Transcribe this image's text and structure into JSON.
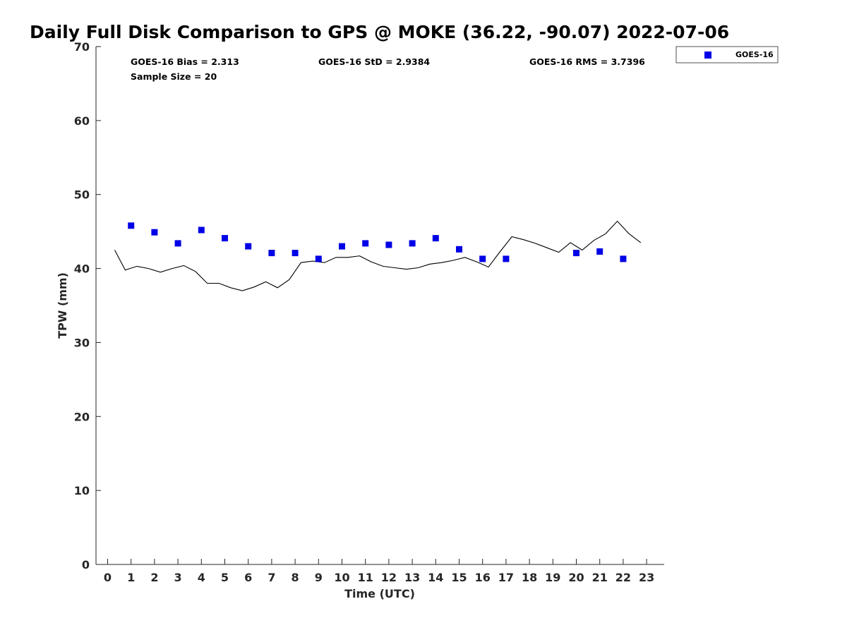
{
  "chart_data": {
    "type": "scatter",
    "title": "Daily Full Disk Comparison to GPS @ MOKE (36.22, -90.07) 2022-07-06",
    "xlabel": "Time (UTC)",
    "ylabel": "TPW (mm)",
    "xlim": [
      -0.5,
      23.8
    ],
    "ylim": [
      0,
      70
    ],
    "x_ticks": [
      "0",
      "1",
      "2",
      "3",
      "4",
      "5",
      "6",
      "7",
      "8",
      "9",
      "10",
      "11",
      "12",
      "13",
      "14",
      "15",
      "16",
      "17",
      "18",
      "19",
      "20",
      "21",
      "22",
      "23"
    ],
    "y_ticks": [
      "0",
      "10",
      "20",
      "30",
      "40",
      "50",
      "60",
      "70"
    ],
    "grid": false,
    "legend_position": "top-right",
    "stats": {
      "bias": "GOES-16 Bias = 2.313",
      "std": "GOES-16 StD = 2.9384",
      "rms": "GOES-16 RMS = 3.7396",
      "sample": "Sample Size = 20"
    },
    "series": [
      {
        "name": "GOES-16",
        "kind": "scatter",
        "color": "#0000e6",
        "marker": "square",
        "x": [
          1,
          2,
          3,
          4,
          5,
          6,
          7,
          8,
          9,
          10,
          11,
          12,
          13,
          14,
          15,
          16,
          17,
          20,
          21,
          22
        ],
        "y": [
          45.8,
          44.9,
          43.4,
          45.2,
          44.1,
          43.0,
          42.1,
          42.1,
          41.3,
          43.0,
          43.4,
          43.2,
          43.4,
          44.1,
          42.6,
          41.3,
          41.3,
          42.1,
          42.3,
          41.3
        ]
      },
      {
        "kind": "line",
        "color": "#000000",
        "x": [
          0.3,
          0.75,
          1.25,
          1.75,
          2.25,
          2.75,
          3.25,
          3.75,
          4.25,
          4.75,
          5.25,
          5.75,
          6.25,
          6.75,
          7.25,
          7.75,
          8.25,
          8.75,
          9.25,
          9.75,
          10.25,
          10.75,
          11.25,
          11.75,
          12.25,
          12.75,
          13.25,
          13.75,
          14.25,
          14.75,
          15.25,
          15.75,
          16.25,
          16.75,
          17.25,
          17.75,
          18.25,
          18.75,
          19.25,
          19.75,
          20.25,
          20.75,
          21.25,
          21.75,
          22.25,
          22.75
        ],
        "y": [
          42.5,
          39.8,
          40.3,
          40.0,
          39.5,
          40.0,
          40.4,
          39.6,
          38.0,
          38.0,
          37.4,
          37.0,
          37.5,
          38.2,
          37.4,
          38.5,
          40.8,
          41.0,
          40.8,
          41.5,
          41.5,
          41.7,
          40.9,
          40.3,
          40.1,
          39.9,
          40.1,
          40.6,
          40.8,
          41.1,
          41.5,
          40.9,
          40.2,
          42.3,
          44.3,
          43.9,
          43.4,
          42.8,
          42.2,
          43.5,
          42.5,
          43.8,
          44.7,
          46.4,
          44.7,
          43.5
        ]
      }
    ]
  }
}
